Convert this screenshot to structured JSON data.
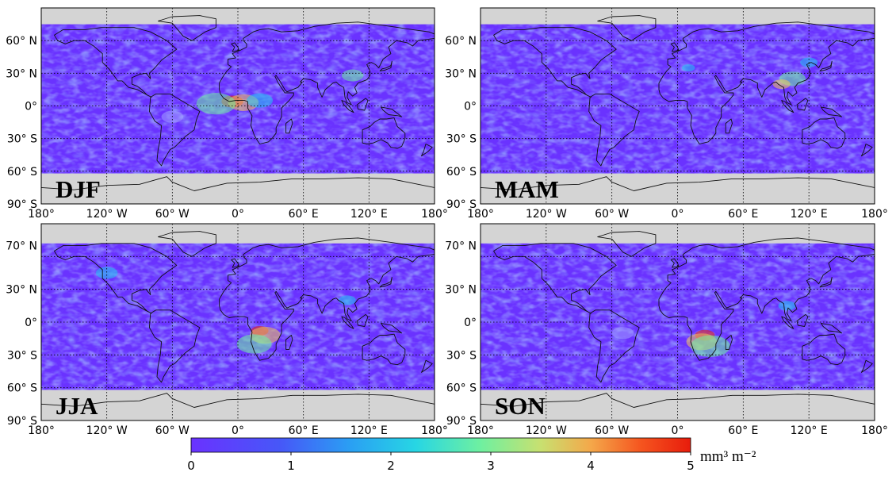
{
  "colors": {
    "missing": "#d4d4d4",
    "colormap": [
      "#6a32ff",
      "#3c7cf6",
      "#22c4f2",
      "#6ff0a0",
      "#f4c95a",
      "#f5551f",
      "#e81c0c"
    ]
  },
  "lat_labels": [
    "60° N",
    "30° N",
    "0°",
    "30° S",
    "60° S",
    "90° S"
  ],
  "lat_labels_bottom": [
    "70° N",
    "30° N",
    "0°",
    "30° S",
    "60° S",
    "90° S"
  ],
  "lon_labels": [
    "180°",
    "120° W",
    "60° W",
    "0°",
    "60° E",
    "120° E",
    "180°"
  ],
  "panels": [
    {
      "season": "DJF"
    },
    {
      "season": "MAM"
    },
    {
      "season": "JJA"
    },
    {
      "season": "SON"
    }
  ],
  "colorbar": {
    "ticks": [
      "0",
      "1",
      "2",
      "3",
      "4",
      "5"
    ],
    "unit": "mm³ m⁻²"
  }
}
